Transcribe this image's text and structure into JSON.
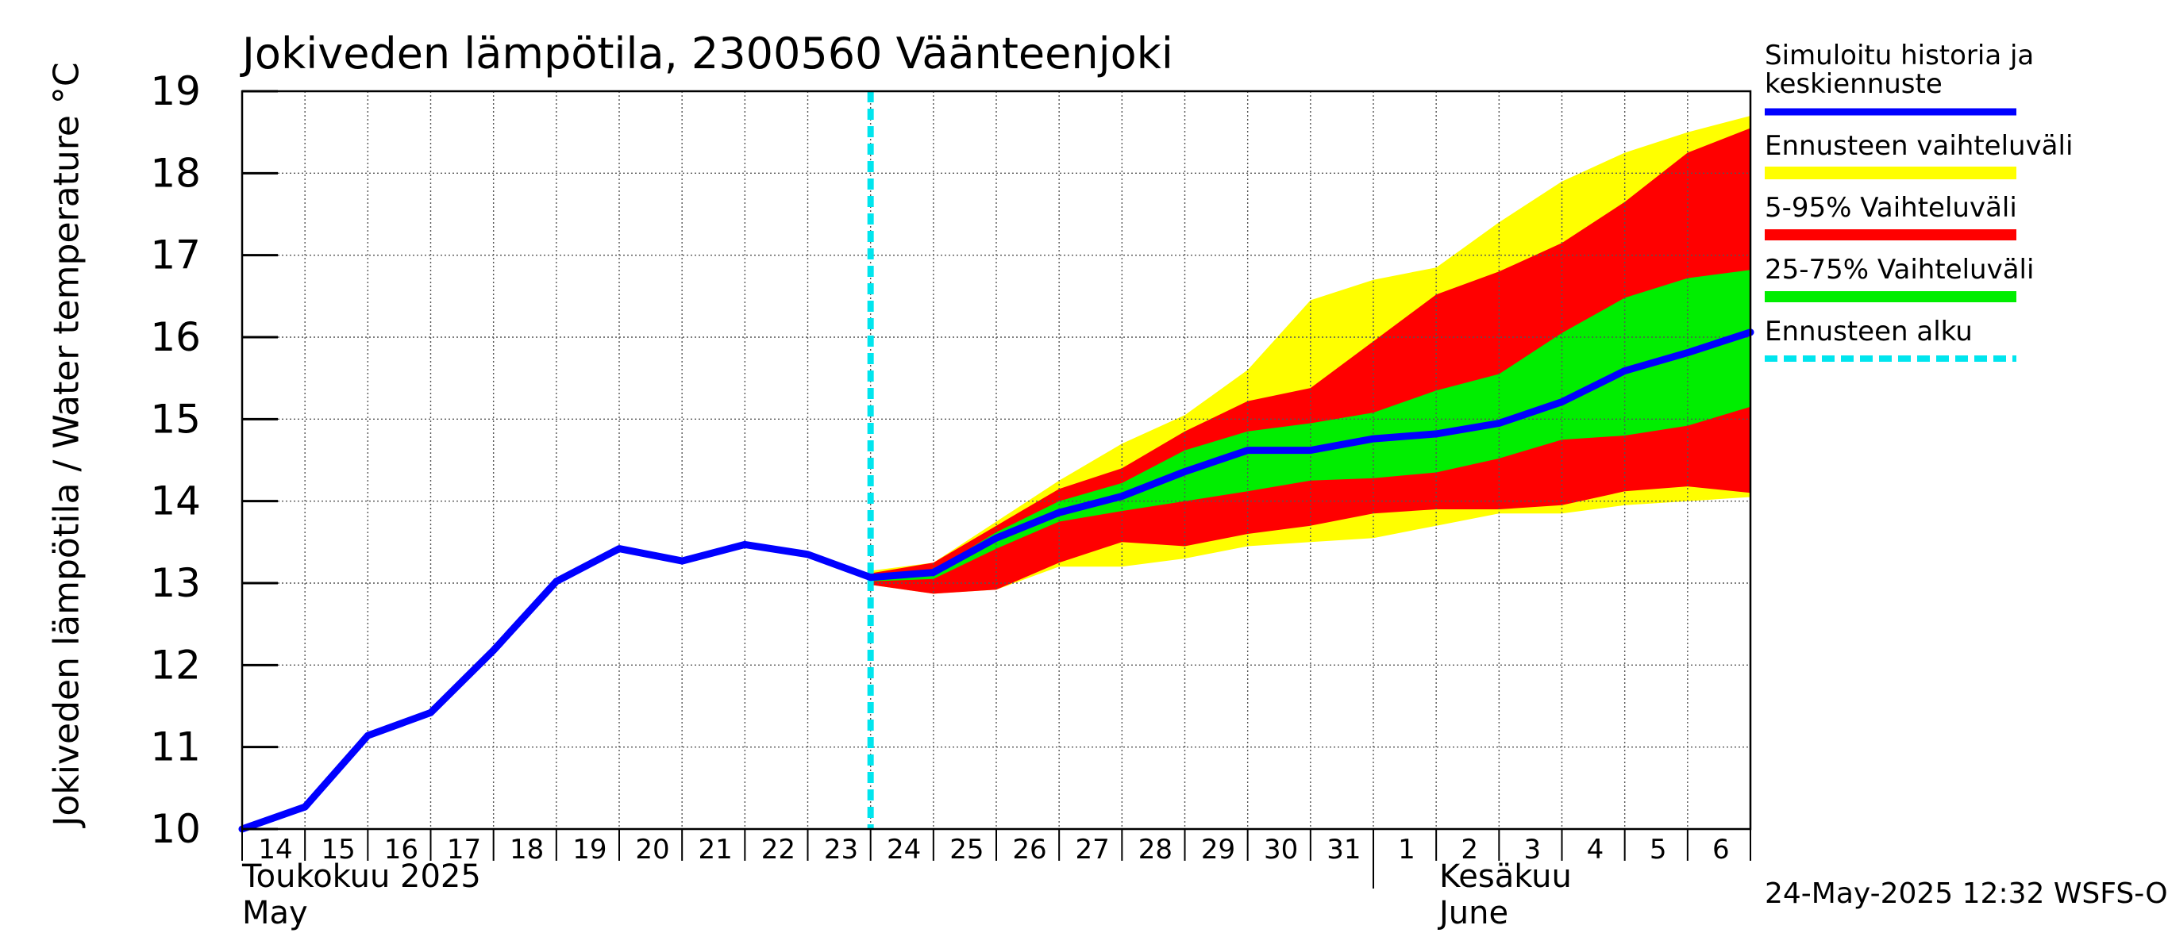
{
  "title": "Jokiveden lämpötila, 2300560 Väänteenjoki",
  "y_axis_label": "Jokiveden lämpötila / Water temperature   °C",
  "month_labels": {
    "may_fi": "Toukokuu  2025",
    "may_en": "May",
    "june_fi": "Kesäkuu",
    "june_en": "June"
  },
  "timestamp": "24-May-2025 12:32 WSFS-O",
  "legend": [
    {
      "label": "Simuloitu historia ja keskiennuste",
      "color": "#0000ff"
    },
    {
      "label": "Ennusteen vaihteluväli",
      "color": "#ffff00"
    },
    {
      "label": "5-95% Vaihteluväli",
      "color": "#ff0000"
    },
    {
      "label": "25-75% Vaihteluväli",
      "color": "#00ee00"
    },
    {
      "label": "Ennusteen alku",
      "color": "#00e5ee"
    }
  ],
  "chart_data": {
    "type": "line",
    "title": "Jokiveden lämpötila, 2300560 Väänteenjoki",
    "ylabel": "Jokiveden lämpötila / Water temperature °C",
    "ylim": [
      10,
      19
    ],
    "yticks": [
      10,
      11,
      12,
      13,
      14,
      15,
      16,
      17,
      18,
      19
    ],
    "x_ticks": [
      "14",
      "15",
      "16",
      "17",
      "18",
      "19",
      "20",
      "21",
      "22",
      "23",
      "24",
      "25",
      "26",
      "27",
      "28",
      "29",
      "30",
      "31",
      "1",
      "2",
      "3",
      "4",
      "5",
      "6"
    ],
    "x_dates": [
      "2025-05-14",
      "2025-05-15",
      "2025-05-16",
      "2025-05-17",
      "2025-05-18",
      "2025-05-19",
      "2025-05-20",
      "2025-05-21",
      "2025-05-22",
      "2025-05-23",
      "2025-05-24",
      "2025-05-25",
      "2025-05-26",
      "2025-05-27",
      "2025-05-28",
      "2025-05-29",
      "2025-05-30",
      "2025-05-31",
      "2025-06-01",
      "2025-06-02",
      "2025-06-03",
      "2025-06-04",
      "2025-06-05",
      "2025-06-06",
      "2025-06-07"
    ],
    "forecast_start": "2025-05-24",
    "grid": true,
    "legend_position": "right",
    "series": [
      {
        "name": "Simuloitu historia ja keskiennuste",
        "color": "#0000ff",
        "values": [
          10.0,
          10.27,
          11.14,
          11.42,
          12.18,
          13.02,
          13.42,
          13.27,
          13.47,
          13.35,
          13.07,
          13.13,
          13.55,
          13.86,
          14.06,
          14.36,
          14.62,
          14.62,
          14.76,
          14.82,
          14.95,
          15.21,
          15.59,
          15.81,
          16.06
        ]
      }
    ],
    "bands": [
      {
        "name": "Ennusteen vaihteluväli",
        "color": "#ffff00",
        "upper": [
          13.15,
          13.25,
          13.75,
          14.25,
          14.7,
          15.05,
          15.6,
          16.45,
          16.7,
          16.85,
          17.4,
          17.9,
          18.25,
          18.5,
          18.7
        ],
        "lower": [
          12.98,
          12.87,
          12.92,
          13.2,
          13.2,
          13.3,
          13.45,
          13.5,
          13.55,
          13.7,
          13.85,
          13.85,
          13.95,
          14.0,
          14.05
        ]
      },
      {
        "name": "5-95% Vaihteluväli",
        "color": "#ff0000",
        "upper": [
          13.12,
          13.25,
          13.7,
          14.15,
          14.4,
          14.85,
          15.22,
          15.38,
          15.95,
          16.52,
          16.8,
          17.15,
          17.65,
          18.25,
          18.55
        ],
        "lower": [
          12.98,
          12.87,
          12.92,
          13.25,
          13.5,
          13.45,
          13.6,
          13.7,
          13.85,
          13.9,
          13.9,
          13.95,
          14.12,
          14.18,
          14.1
        ]
      },
      {
        "name": "25-75% Vaihteluväli",
        "color": "#00ee00",
        "upper": [
          13.1,
          13.15,
          13.62,
          14.0,
          14.22,
          14.62,
          14.85,
          14.95,
          15.08,
          15.35,
          15.55,
          16.05,
          16.48,
          16.72,
          16.82
        ],
        "lower": [
          13.02,
          13.05,
          13.42,
          13.75,
          13.88,
          14.0,
          14.12,
          14.25,
          14.28,
          14.35,
          14.52,
          14.75,
          14.8,
          14.92,
          15.15
        ]
      }
    ]
  }
}
